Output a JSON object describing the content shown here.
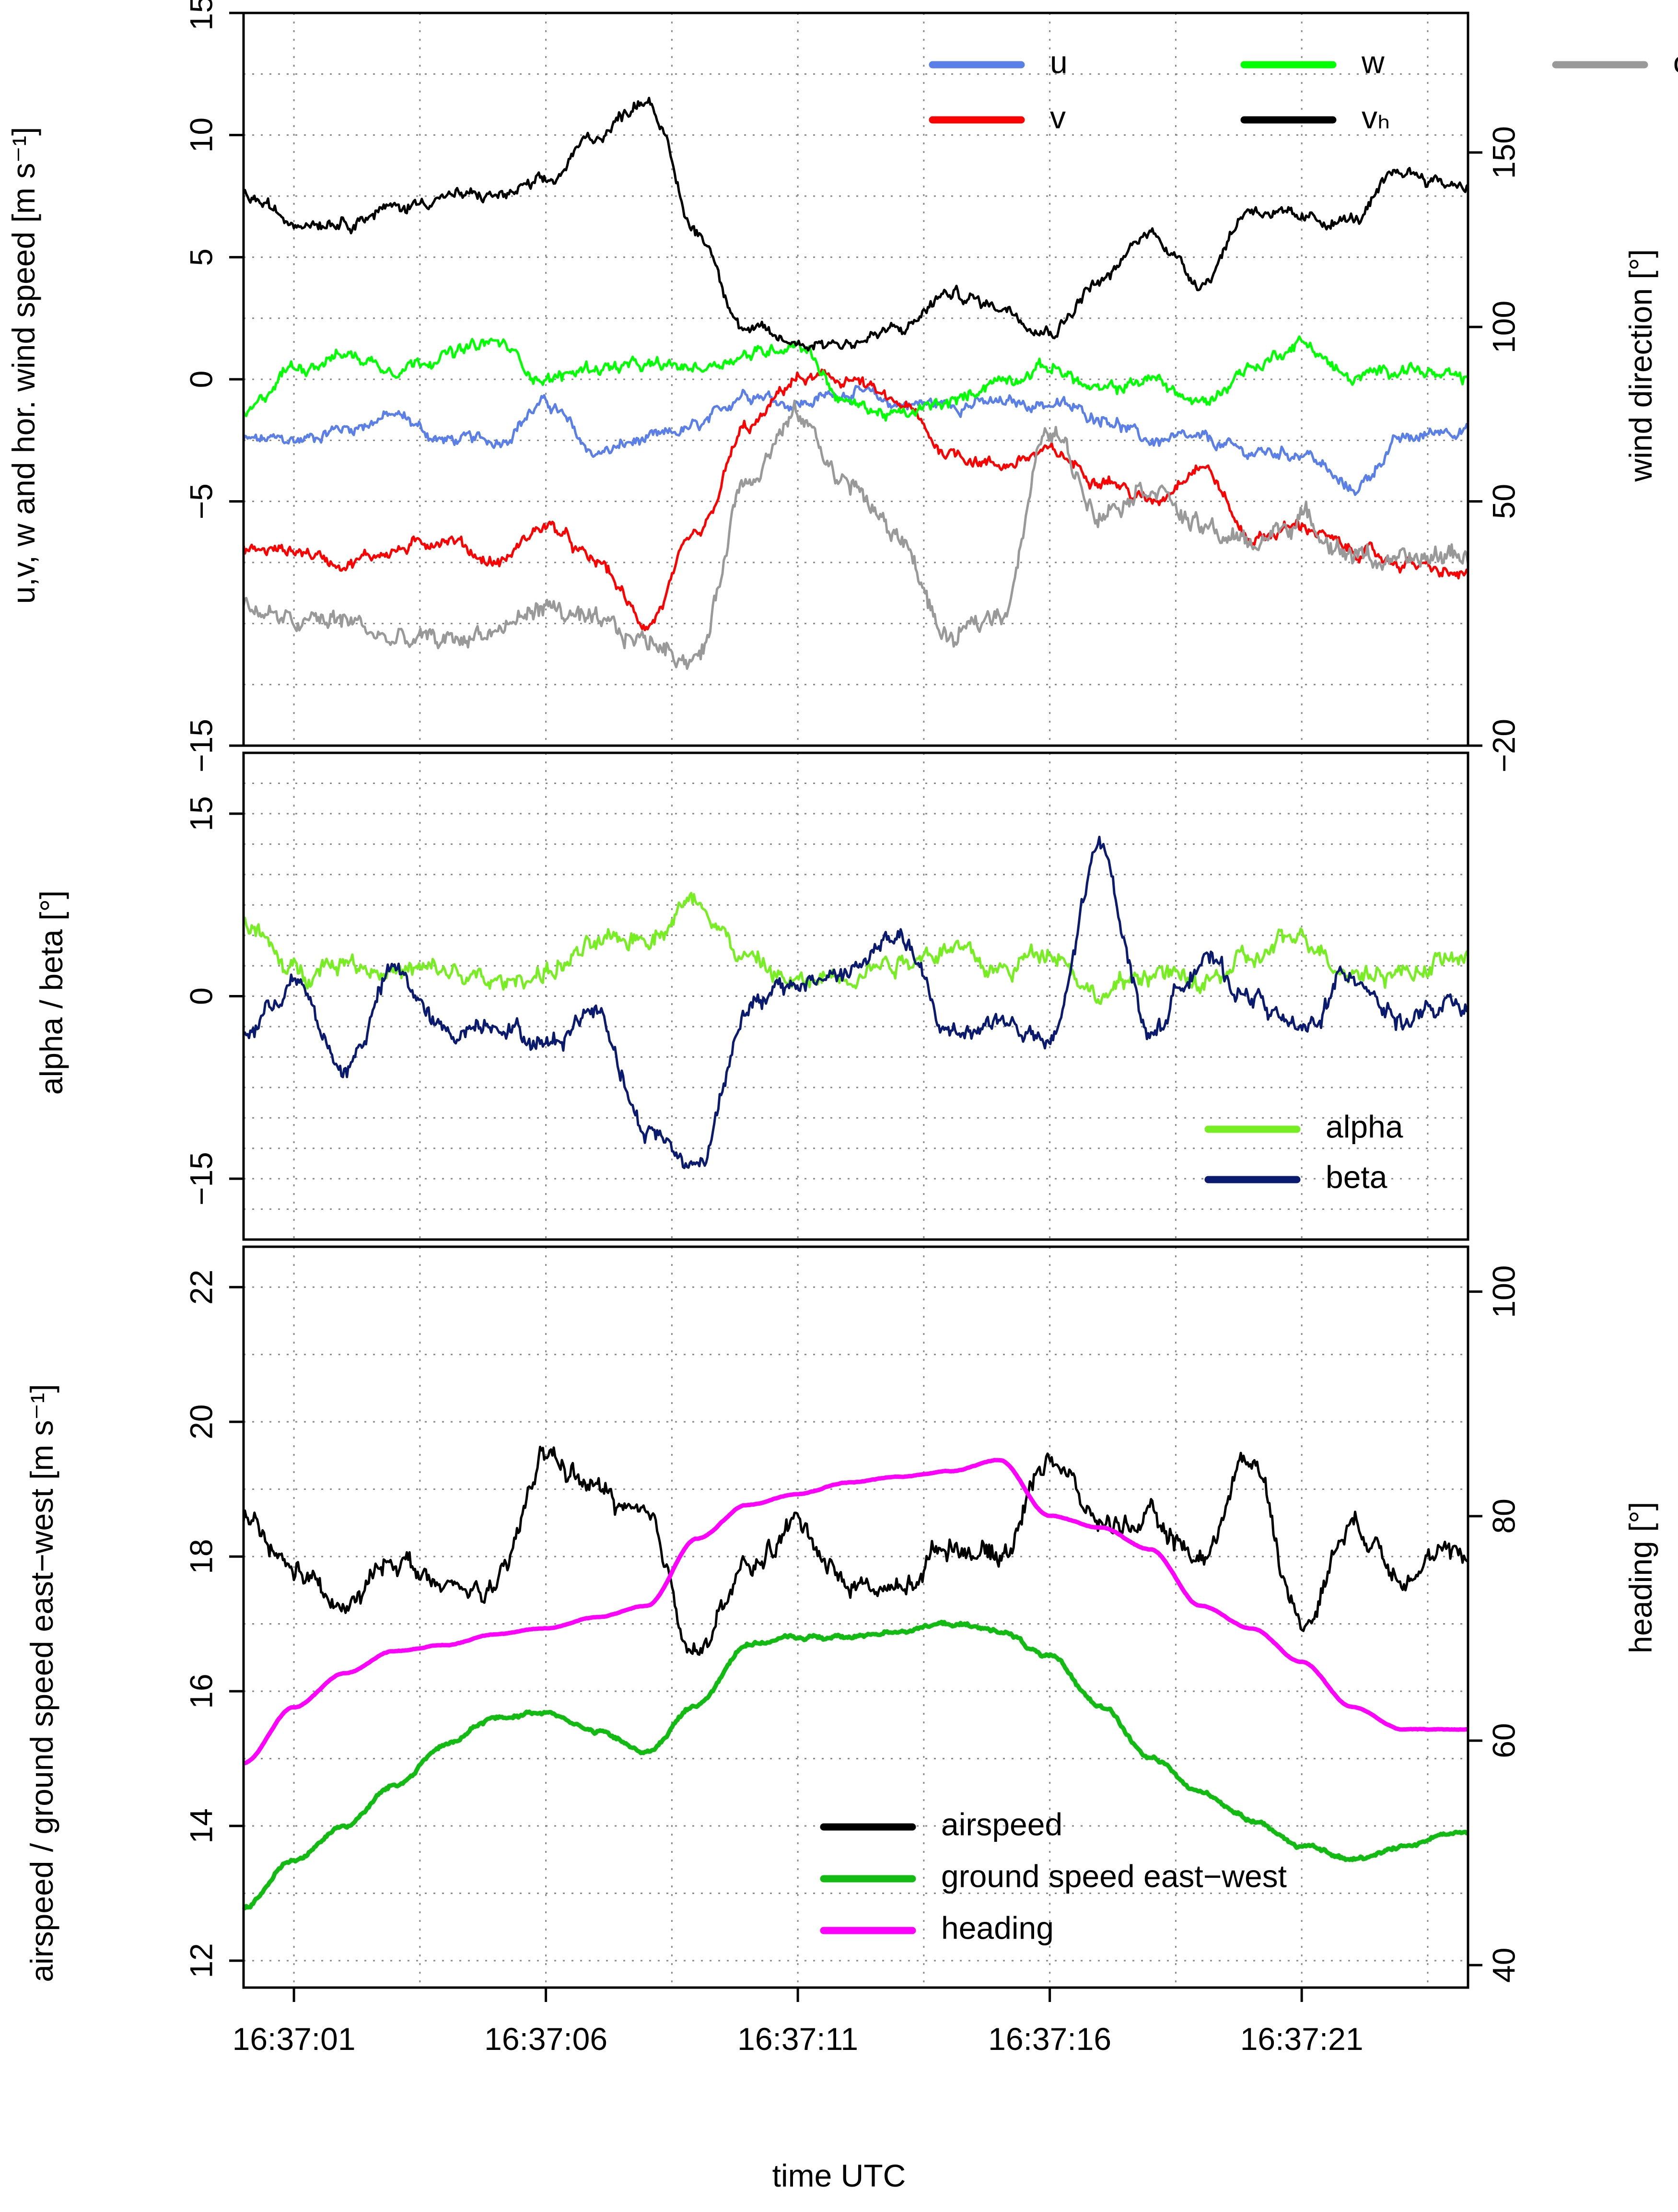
{
  "chart_data": [
    {
      "type": "line",
      "panel": "top",
      "ylabel": "u,v, w and hor. wind speed [m s⁻¹]",
      "y2label": "wind direction [°]",
      "ylim": [
        -15,
        15
      ],
      "yticks": [
        "−15",
        "−5",
        "0",
        "5",
        "10",
        "15"
      ],
      "yticks_values": [
        -15,
        -5,
        0,
        5,
        10,
        15
      ],
      "y2lim": [
        -20,
        190
      ],
      "y2ticks": [
        "−20",
        "50",
        "100",
        "150"
      ],
      "y2ticks_values": [
        -20,
        50,
        100,
        150
      ],
      "legend_position": "top-right",
      "series": [
        {
          "name": "u",
          "color": "#5b7fe8",
          "axis": "left",
          "x": [
            0,
            1,
            2,
            3,
            4,
            5,
            6,
            7,
            8,
            9,
            10,
            11,
            12,
            13,
            14,
            15,
            16,
            17,
            18,
            19,
            20,
            21,
            22,
            23,
            24
          ],
          "y": [
            -2.5,
            -2.5,
            -2,
            -1.5,
            -2.5,
            -2.5,
            -1,
            -3,
            -2.5,
            -2,
            -0.5,
            -1,
            -0.5,
            -1,
            -1,
            -1,
            -1,
            -1.5,
            -2.5,
            -2.5,
            -3,
            -3,
            -4.5,
            -2.5,
            -2
          ]
        },
        {
          "name": "v",
          "color": "#ff0000",
          "axis": "left",
          "x": [
            0,
            1,
            2,
            3,
            4,
            5,
            6,
            7,
            8,
            9,
            10,
            11,
            12,
            13,
            14,
            15,
            16,
            17,
            18,
            19,
            20,
            21,
            22,
            23,
            24
          ],
          "y": [
            -7,
            -7,
            -7.5,
            -7,
            -6.5,
            -7.5,
            -6,
            -7.5,
            -10,
            -6.5,
            -2,
            0,
            0,
            -1,
            -3,
            -3.5,
            -3,
            -4,
            -5,
            -3.5,
            -6.5,
            -6,
            -7,
            -7.5,
            -8
          ]
        },
        {
          "name": "w",
          "color": "#00ff00",
          "axis": "left",
          "x": [
            0,
            1,
            2,
            3,
            4,
            5,
            6,
            7,
            8,
            9,
            10,
            11,
            12,
            13,
            14,
            15,
            16,
            17,
            18,
            19,
            20,
            21,
            22,
            23,
            24
          ],
          "y": [
            -1.5,
            0.5,
            1,
            0.5,
            1,
            1.5,
            0,
            0.5,
            0.5,
            0.5,
            1,
            1.5,
            -1,
            -1.5,
            -1,
            0,
            0.5,
            -0.5,
            0,
            -1,
            0.5,
            1.5,
            0,
            0.5,
            0
          ]
        },
        {
          "name": "vₕ",
          "color": "#000000",
          "axis": "left",
          "x": [
            0,
            1,
            2,
            3,
            4,
            5,
            6,
            7,
            8,
            9,
            10,
            11,
            12,
            13,
            14,
            15,
            16,
            17,
            18,
            19,
            20,
            21,
            22,
            23,
            24
          ],
          "y": [
            7.5,
            6.5,
            6.5,
            7,
            7.5,
            7.5,
            8,
            10,
            11.5,
            6,
            2,
            1.5,
            1.5,
            2,
            3.5,
            3,
            2,
            4,
            6,
            4,
            7,
            6.5,
            6.5,
            8.5,
            8
          ]
        },
        {
          "name": "ϕ",
          "color": "#999999",
          "axis": "right",
          "x": [
            0,
            1,
            2,
            3,
            4,
            5,
            6,
            7,
            8,
            9,
            10,
            11,
            12,
            13,
            14,
            15,
            16,
            17,
            18,
            19,
            20,
            21,
            22,
            23,
            24
          ],
          "y": [
            20,
            15,
            16,
            10,
            10,
            13,
            20,
            14,
            10,
            5,
            58,
            74,
            55,
            40,
            10,
            18,
            70,
            48,
            55,
            42,
            38,
            45,
            35,
            32,
            35
          ]
        }
      ]
    },
    {
      "type": "line",
      "panel": "middle",
      "ylabel": "alpha / beta [°]",
      "ylim": [
        -20,
        20
      ],
      "yticks": [
        "−15",
        "0",
        "15"
      ],
      "yticks_values": [
        -15,
        0,
        15
      ],
      "legend_position": "bottom-right",
      "series": [
        {
          "name": "alpha",
          "color": "#77ee22",
          "x": [
            0,
            1,
            2,
            3,
            4,
            5,
            6,
            7,
            8,
            9,
            10,
            11,
            12,
            13,
            14,
            15,
            16,
            17,
            18,
            19,
            20,
            21,
            22,
            23,
            24
          ],
          "y": [
            6,
            2,
            3,
            2,
            2,
            1,
            2,
            4,
            5,
            8,
            3,
            1,
            2,
            3,
            4,
            2,
            4,
            0,
            2,
            1,
            3,
            5,
            2,
            2,
            3
          ]
        },
        {
          "name": "beta",
          "color": "#0a1a6e",
          "x": [
            0,
            1,
            2,
            3,
            4,
            5,
            6,
            7,
            8,
            9,
            10,
            11,
            12,
            13,
            14,
            15,
            16,
            17,
            18,
            19,
            20,
            21,
            22,
            23,
            24
          ],
          "y": [
            -3,
            1,
            -6,
            2,
            -3,
            -2,
            -4,
            -1,
            -11,
            -14,
            -1,
            1,
            2,
            5,
            -3,
            -2,
            -4,
            12,
            -3,
            3,
            0,
            -3,
            2,
            -2,
            -1
          ]
        }
      ]
    },
    {
      "type": "line",
      "panel": "bottom",
      "xlabel": "time UTC",
      "ylabel": "airspeed / ground speed east−west [m s⁻¹]",
      "y2label": "heading [°]",
      "ylim": [
        11.6,
        22.6
      ],
      "yticks": [
        "12",
        "14",
        "16",
        "18",
        "20",
        "22"
      ],
      "yticks_values": [
        12,
        14,
        16,
        18,
        20,
        22
      ],
      "y2lim": [
        38,
        104
      ],
      "y2ticks": [
        "40",
        "60",
        "80",
        "100"
      ],
      "y2ticks_values": [
        40,
        60,
        80,
        100
      ],
      "xlim": [
        0,
        24.3
      ],
      "xticks": [
        "16:37:01",
        "16:37:06",
        "16:37:11",
        "16:37:16",
        "16:37:21"
      ],
      "xticks_values": [
        1,
        6,
        11,
        16,
        21
      ],
      "legend_position": "bottom-right",
      "series": [
        {
          "name": "airspeed",
          "color": "#000000",
          "axis": "left",
          "x": [
            0,
            1,
            2,
            3,
            4,
            5,
            6,
            7,
            8,
            9,
            10,
            11,
            12,
            13,
            14,
            15,
            16,
            17,
            18,
            19,
            20,
            21,
            22,
            23,
            24
          ],
          "y": [
            18.5,
            17.8,
            17.2,
            18,
            17.5,
            17.5,
            19.5,
            19,
            18.5,
            16.6,
            17.8,
            18.5,
            17.6,
            17.5,
            18.2,
            18,
            19.5,
            18.5,
            18.5,
            18,
            19.5,
            17,
            18.5,
            17.8,
            18
          ]
        },
        {
          "name": "ground speed east−west",
          "color": "#11bb11",
          "axis": "left",
          "x": [
            0,
            1,
            2,
            3,
            4,
            5,
            6,
            7,
            8,
            9,
            10,
            11,
            12,
            13,
            14,
            15,
            16,
            17,
            18,
            19,
            20,
            21,
            22,
            23,
            24
          ],
          "y": [
            12.8,
            13.5,
            14,
            14.6,
            15.2,
            15.6,
            15.7,
            15.4,
            15.1,
            15.8,
            16.7,
            16.8,
            16.8,
            16.9,
            17,
            16.9,
            16.5,
            15.8,
            15,
            14.5,
            14.1,
            13.7,
            13.5,
            13.7,
            13.9
          ]
        },
        {
          "name": "heading",
          "color": "#ff00ff",
          "axis": "right",
          "x": [
            0,
            1,
            2,
            3,
            4,
            5,
            6,
            7,
            8,
            9,
            10,
            11,
            12,
            13,
            14,
            15,
            16,
            17,
            18,
            19,
            20,
            21,
            22,
            23,
            24
          ],
          "y": [
            58,
            63,
            66,
            68,
            68.5,
            69.5,
            70,
            71,
            72,
            78,
            81,
            82,
            83,
            83.5,
            84,
            85,
            80,
            79,
            77,
            72,
            70,
            67,
            63,
            61,
            61
          ]
        }
      ]
    }
  ]
}
